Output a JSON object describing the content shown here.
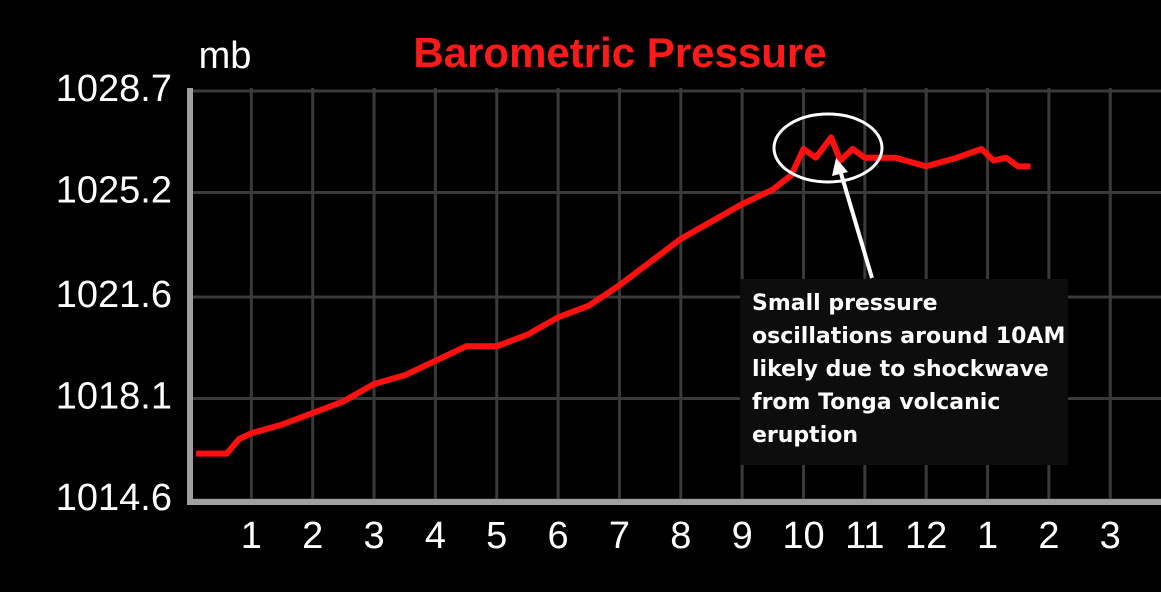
{
  "chart_data": {
    "type": "line",
    "title": "Barometric Pressure",
    "y_label": "mb",
    "x": [
      0.1,
      0.6,
      0.8,
      1.0,
      1.5,
      2.0,
      2.5,
      3.0,
      3.5,
      4.0,
      4.5,
      5.0,
      5.5,
      6.0,
      6.5,
      7.0,
      7.5,
      8.0,
      8.5,
      9.0,
      9.5,
      9.8,
      10.0,
      10.2,
      10.45,
      10.6,
      10.8,
      11.0,
      11.5,
      12.0,
      12.5,
      12.9,
      13.1,
      13.3,
      13.5,
      13.7
    ],
    "values": [
      1016.2,
      1016.2,
      1016.7,
      1016.9,
      1017.2,
      1017.6,
      1018.0,
      1018.6,
      1018.9,
      1019.4,
      1019.9,
      1019.9,
      1020.3,
      1020.9,
      1021.3,
      1022.0,
      1022.8,
      1023.6,
      1024.2,
      1024.8,
      1025.3,
      1025.8,
      1026.7,
      1026.4,
      1027.1,
      1026.3,
      1026.7,
      1026.4,
      1026.4,
      1026.1,
      1026.4,
      1026.7,
      1026.3,
      1026.4,
      1026.1,
      1026.1
    ],
    "color": "#ff1010",
    "xlim": [
      0,
      15.8
    ],
    "xticks": [
      1,
      2,
      3,
      4,
      5,
      6,
      7,
      8,
      9,
      10,
      11,
      12,
      {
        "value": 13,
        "label": "1"
      },
      {
        "value": 14,
        "label": "2"
      },
      {
        "value": 15,
        "label": "3"
      }
    ],
    "ylim": [
      1014.6,
      1028.7
    ],
    "yticks": [
      1014.6,
      1018.1,
      1021.6,
      1025.2,
      1028.7
    ],
    "grid": true,
    "annotation": [
      "Small pressure",
      "oscillations around 10AM",
      "likely due to shockwave",
      "from Tonga volcanic",
      "eruption"
    ]
  }
}
